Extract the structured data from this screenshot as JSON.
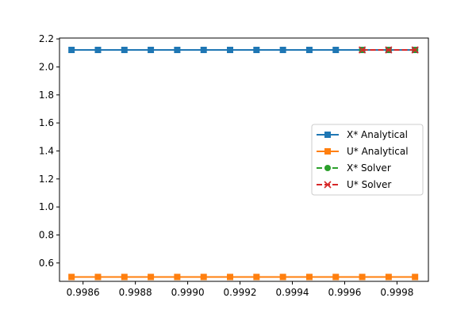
{
  "chart_data": {
    "type": "line",
    "title": "",
    "xlabel": "",
    "ylabel": "",
    "xlim": [
      0.99851,
      0.99992
    ],
    "ylim": [
      0.4688,
      2.2062
    ],
    "xticks": [
      0.9986,
      0.9988,
      0.999,
      0.9992,
      0.9994,
      0.9996,
      0.9998
    ],
    "xtick_labels": [
      "0.9986",
      "0.9988",
      "0.9990",
      "0.9992",
      "0.9994",
      "0.9996",
      "0.9998"
    ],
    "yticks": [
      0.6,
      0.8,
      1.0,
      1.2,
      1.4,
      1.6,
      1.8,
      2.0,
      2.2
    ],
    "ytick_labels": [
      "0.6",
      "0.8",
      "1.0",
      "1.2",
      "1.4",
      "1.6",
      "1.8",
      "2.0",
      "2.2"
    ],
    "grid": false,
    "legend_position": "center-right",
    "series": [
      {
        "name": "X* Analytical",
        "color": "#1f77b4",
        "marker": "square",
        "linestyle": "solid",
        "x": [
          0.998556,
          0.998657,
          0.998758,
          0.998859,
          0.99896,
          0.999061,
          0.999162,
          0.999263,
          0.999364,
          0.999465,
          0.999566,
          0.999667,
          0.999768,
          0.999869
        ],
        "y": [
          2.1213,
          2.1213,
          2.1213,
          2.1213,
          2.1213,
          2.1213,
          2.1213,
          2.1213,
          2.1213,
          2.1213,
          2.1213,
          2.1213,
          2.1213,
          2.1213
        ]
      },
      {
        "name": "U* Analytical",
        "color": "#ff7f0e",
        "marker": "square",
        "linestyle": "solid",
        "x": [
          0.998556,
          0.998657,
          0.998758,
          0.998859,
          0.99896,
          0.999061,
          0.999162,
          0.999263,
          0.999364,
          0.999465,
          0.999566,
          0.999667,
          0.999768,
          0.999869
        ],
        "y": [
          0.5,
          0.5,
          0.5,
          0.5,
          0.5,
          0.5,
          0.5,
          0.5,
          0.5,
          0.5,
          0.5,
          0.5,
          0.5,
          0.5
        ]
      },
      {
        "name": "X* Solver",
        "color": "#2ca02c",
        "marker": "circle",
        "linestyle": "dashed",
        "x": [
          0.999667,
          0.999768,
          0.999869
        ],
        "y": [
          2.1213,
          2.1213,
          2.1213
        ]
      },
      {
        "name": "U* Solver",
        "color": "#d62728",
        "marker": "x",
        "linestyle": "dashed",
        "x": [
          0.999667,
          0.999768,
          0.999869
        ],
        "y": [
          2.1213,
          2.1213,
          2.1213
        ]
      }
    ]
  }
}
